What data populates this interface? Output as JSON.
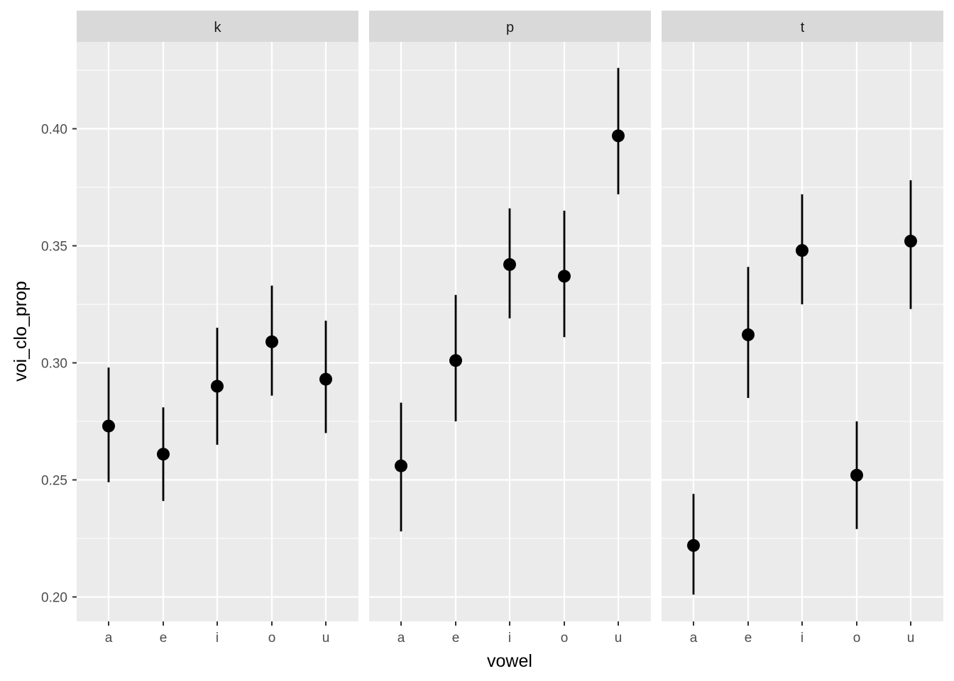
{
  "chart_data": {
    "type": "scatter",
    "subtype": "faceted point-range",
    "xlabel": "vowel",
    "ylabel": "voi_clo_prop",
    "categories": [
      "a",
      "e",
      "i",
      "o",
      "u"
    ],
    "ylim": [
      0.19,
      0.44
    ],
    "yticks": [
      "0.20",
      "0.25",
      "0.30",
      "0.35",
      "0.40"
    ],
    "grid": true,
    "colors": {
      "panel_bg": "#ebebeb",
      "strip_bg": "#d9d9d9",
      "grid": "#ffffff",
      "mark": "#000000"
    },
    "facets": [
      {
        "label": "k",
        "points": [
          {
            "x": "a",
            "y": 0.273,
            "ymin": 0.249,
            "ymax": 0.298
          },
          {
            "x": "e",
            "y": 0.261,
            "ymin": 0.241,
            "ymax": 0.281
          },
          {
            "x": "i",
            "y": 0.29,
            "ymin": 0.265,
            "ymax": 0.315
          },
          {
            "x": "o",
            "y": 0.309,
            "ymin": 0.286,
            "ymax": 0.333
          },
          {
            "x": "u",
            "y": 0.293,
            "ymin": 0.27,
            "ymax": 0.318
          }
        ]
      },
      {
        "label": "p",
        "points": [
          {
            "x": "a",
            "y": 0.256,
            "ymin": 0.228,
            "ymax": 0.283
          },
          {
            "x": "e",
            "y": 0.301,
            "ymin": 0.275,
            "ymax": 0.329
          },
          {
            "x": "i",
            "y": 0.342,
            "ymin": 0.319,
            "ymax": 0.366
          },
          {
            "x": "o",
            "y": 0.337,
            "ymin": 0.311,
            "ymax": 0.365
          },
          {
            "x": "u",
            "y": 0.397,
            "ymin": 0.372,
            "ymax": 0.426
          }
        ]
      },
      {
        "label": "t",
        "points": [
          {
            "x": "a",
            "y": 0.222,
            "ymin": 0.201,
            "ymax": 0.244
          },
          {
            "x": "e",
            "y": 0.312,
            "ymin": 0.285,
            "ymax": 0.341
          },
          {
            "x": "i",
            "y": 0.348,
            "ymin": 0.325,
            "ymax": 0.372
          },
          {
            "x": "o",
            "y": 0.252,
            "ymin": 0.229,
            "ymax": 0.275
          },
          {
            "x": "u",
            "y": 0.352,
            "ymin": 0.323,
            "ymax": 0.378
          }
        ]
      }
    ]
  }
}
